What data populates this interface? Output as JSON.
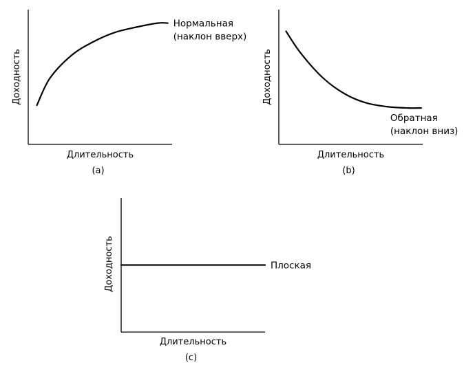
{
  "colors": {
    "line": "#000000",
    "background": "#ffffff"
  },
  "chart_data": [
    {
      "type": "line",
      "panel_label": "(a)",
      "xlabel": "Длительность",
      "ylabel": "Доходность",
      "xlim": [
        0,
        1
      ],
      "ylim": [
        0,
        1
      ],
      "grid": false,
      "series": [
        {
          "name": "Нормальная (наклон вверх)",
          "name_lines": [
            "Нормальная",
            "(наклон вверх)"
          ],
          "x": [
            0.06,
            0.15,
            0.3,
            0.45,
            0.6,
            0.75,
            0.9,
            0.97
          ],
          "y": [
            0.29,
            0.49,
            0.66,
            0.76,
            0.83,
            0.87,
            0.9,
            0.9
          ]
        }
      ]
    },
    {
      "type": "line",
      "panel_label": "(b)",
      "xlabel": "Длительность",
      "ylabel": "Доходность",
      "xlim": [
        0,
        1
      ],
      "ylim": [
        0,
        1
      ],
      "grid": false,
      "series": [
        {
          "name": "Обратная (наклон вниз)",
          "name_lines": [
            "Обратная",
            "(наклон вниз)"
          ],
          "x": [
            0.05,
            0.15,
            0.3,
            0.45,
            0.6,
            0.75,
            0.9,
            0.99
          ],
          "y": [
            0.84,
            0.68,
            0.5,
            0.38,
            0.31,
            0.28,
            0.27,
            0.27
          ]
        }
      ]
    },
    {
      "type": "line",
      "panel_label": "(c)",
      "xlabel": "Длительность",
      "ylabel": "Доходность",
      "xlim": [
        0,
        1
      ],
      "ylim": [
        0,
        1
      ],
      "grid": false,
      "series": [
        {
          "name": "Плоская",
          "name_lines": [
            "Плоская"
          ],
          "x": [
            0,
            1
          ],
          "y": [
            0.5,
            0.5
          ]
        }
      ]
    }
  ]
}
